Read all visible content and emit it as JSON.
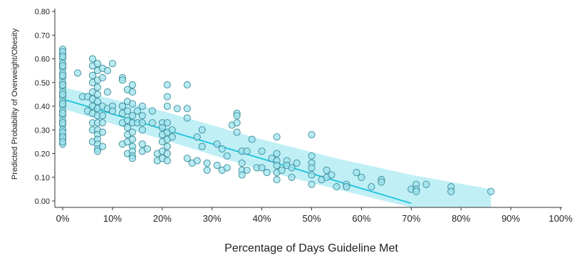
{
  "chart_data": {
    "type": "scatter",
    "title": "",
    "xlabel": "Percentage of Days Guideline Met",
    "ylabel": "Predicted Probability of Overweight/Obesity",
    "xlim": [
      0,
      100
    ],
    "ylim": [
      0,
      0.8
    ],
    "x_ticks": [
      0,
      10,
      20,
      30,
      40,
      50,
      60,
      70,
      80,
      90,
      100
    ],
    "x_tick_labels": [
      "0%",
      "10%",
      "20%",
      "30%",
      "40%",
      "50%",
      "60%",
      "70%",
      "80%",
      "90%",
      "100%"
    ],
    "y_ticks": [
      0,
      0.1,
      0.2,
      0.3,
      0.4,
      0.5,
      0.6,
      0.7,
      0.8
    ],
    "y_tick_labels": [
      "0.00",
      "0.10",
      "0.20",
      "0.30",
      "0.40",
      "0.50",
      "0.60",
      "0.70",
      "0.80"
    ],
    "grid": false,
    "legend": "none",
    "colors": {
      "point_fill": "#9fe3ee",
      "point_stroke": "#3a8a96",
      "fit_line": "#19c3dc",
      "confidence_band": "#b9edf5",
      "axis": "#333333"
    },
    "fit_line": {
      "x": [
        0,
        70
      ],
      "y": [
        0.43,
        -0.01
      ]
    },
    "confidence_band": {
      "x": [
        0,
        20,
        40,
        55,
        70,
        86
      ],
      "upper": [
        0.48,
        0.38,
        0.26,
        0.18,
        0.11,
        0.05
      ],
      "lower": [
        0.39,
        0.26,
        0.13,
        0.05,
        -0.04,
        -0.11
      ]
    },
    "series": [
      {
        "x": [
          0,
          0,
          0,
          0,
          0,
          0,
          0,
          0,
          0,
          0,
          0,
          0,
          0,
          0,
          0,
          0,
          0,
          0,
          0,
          0,
          0,
          0,
          0,
          0,
          0,
          0,
          0,
          0,
          0,
          0,
          0,
          0,
          0,
          3,
          4,
          5,
          5,
          6,
          6,
          6,
          6,
          6,
          6,
          6,
          6,
          6,
          6,
          6,
          7,
          7,
          7,
          7,
          7,
          7,
          7,
          7,
          7,
          7,
          7,
          7,
          7,
          7,
          7,
          8,
          8,
          8,
          8,
          8,
          8,
          8,
          9,
          9,
          9,
          10,
          10,
          10,
          12,
          12,
          12,
          12,
          12,
          12,
          13,
          13,
          13,
          13,
          13,
          13,
          13,
          13,
          14,
          14,
          14,
          14,
          14,
          14,
          14,
          14,
          14,
          14,
          14,
          15,
          15,
          16,
          16,
          16,
          16,
          16,
          16,
          17,
          18,
          18,
          19,
          19,
          20,
          20,
          20,
          20,
          20,
          20,
          21,
          21,
          21,
          21,
          21,
          21,
          21,
          21,
          21,
          22,
          22,
          23,
          25,
          25,
          25,
          25,
          26,
          27,
          27,
          28,
          28,
          29,
          29,
          31,
          31,
          32,
          32,
          33,
          33,
          34,
          35,
          35,
          35,
          35,
          36,
          36,
          36,
          36,
          37,
          37,
          38,
          39,
          40,
          40,
          41,
          42,
          43,
          43,
          43,
          43,
          43,
          43,
          44,
          45,
          45,
          46,
          46,
          47,
          50,
          50,
          50,
          50,
          50,
          50,
          52,
          53,
          53,
          54,
          55,
          57,
          57,
          59,
          60,
          62,
          64,
          64,
          70,
          71,
          71,
          71,
          73,
          78,
          78,
          86
        ],
        "y": [
          0.64,
          0.62,
          0.6,
          0.58,
          0.56,
          0.54,
          0.52,
          0.5,
          0.48,
          0.46,
          0.44,
          0.42,
          0.4,
          0.38,
          0.36,
          0.34,
          0.32,
          0.3,
          0.28,
          0.26,
          0.24,
          0.63,
          0.61,
          0.57,
          0.53,
          0.49,
          0.45,
          0.41,
          0.37,
          0.33,
          0.29,
          0.27,
          0.25,
          0.54,
          0.44,
          0.38,
          0.44,
          0.6,
          0.57,
          0.53,
          0.5,
          0.46,
          0.43,
          0.4,
          0.37,
          0.33,
          0.3,
          0.25,
          0.58,
          0.55,
          0.51,
          0.48,
          0.45,
          0.42,
          0.39,
          0.36,
          0.33,
          0.3,
          0.28,
          0.26,
          0.24,
          0.22,
          0.21,
          0.56,
          0.52,
          0.4,
          0.36,
          0.33,
          0.29,
          0.23,
          0.55,
          0.46,
          0.39,
          0.58,
          0.4,
          0.38,
          0.52,
          0.51,
          0.4,
          0.37,
          0.33,
          0.24,
          0.47,
          0.42,
          0.38,
          0.34,
          0.31,
          0.28,
          0.25,
          0.2,
          0.49,
          0.46,
          0.41,
          0.36,
          0.33,
          0.29,
          0.26,
          0.23,
          0.21,
          0.19,
          0.18,
          0.38,
          0.33,
          0.4,
          0.36,
          0.33,
          0.3,
          0.24,
          0.21,
          0.22,
          0.38,
          0.33,
          0.2,
          0.17,
          0.33,
          0.31,
          0.28,
          0.25,
          0.21,
          0.18,
          0.49,
          0.44,
          0.4,
          0.33,
          0.29,
          0.26,
          0.23,
          0.2,
          0.17,
          0.3,
          0.27,
          0.39,
          0.49,
          0.39,
          0.35,
          0.18,
          0.16,
          0.27,
          0.17,
          0.3,
          0.23,
          0.16,
          0.13,
          0.24,
          0.15,
          0.13,
          0.22,
          0.19,
          0.14,
          0.32,
          0.37,
          0.36,
          0.33,
          0.29,
          0.21,
          0.16,
          0.13,
          0.11,
          0.21,
          0.13,
          0.26,
          0.14,
          0.21,
          0.14,
          0.12,
          0.18,
          0.27,
          0.2,
          0.17,
          0.15,
          0.12,
          0.09,
          0.13,
          0.17,
          0.15,
          0.14,
          0.1,
          0.16,
          0.28,
          0.19,
          0.16,
          0.14,
          0.11,
          0.07,
          0.09,
          0.13,
          0.1,
          0.11,
          0.06,
          0.07,
          0.06,
          0.12,
          0.1,
          0.06,
          0.09,
          0.08,
          0.05,
          0.07,
          0.05,
          0.04,
          0.07,
          0.06,
          0.04,
          0.04
        ]
      }
    ]
  }
}
